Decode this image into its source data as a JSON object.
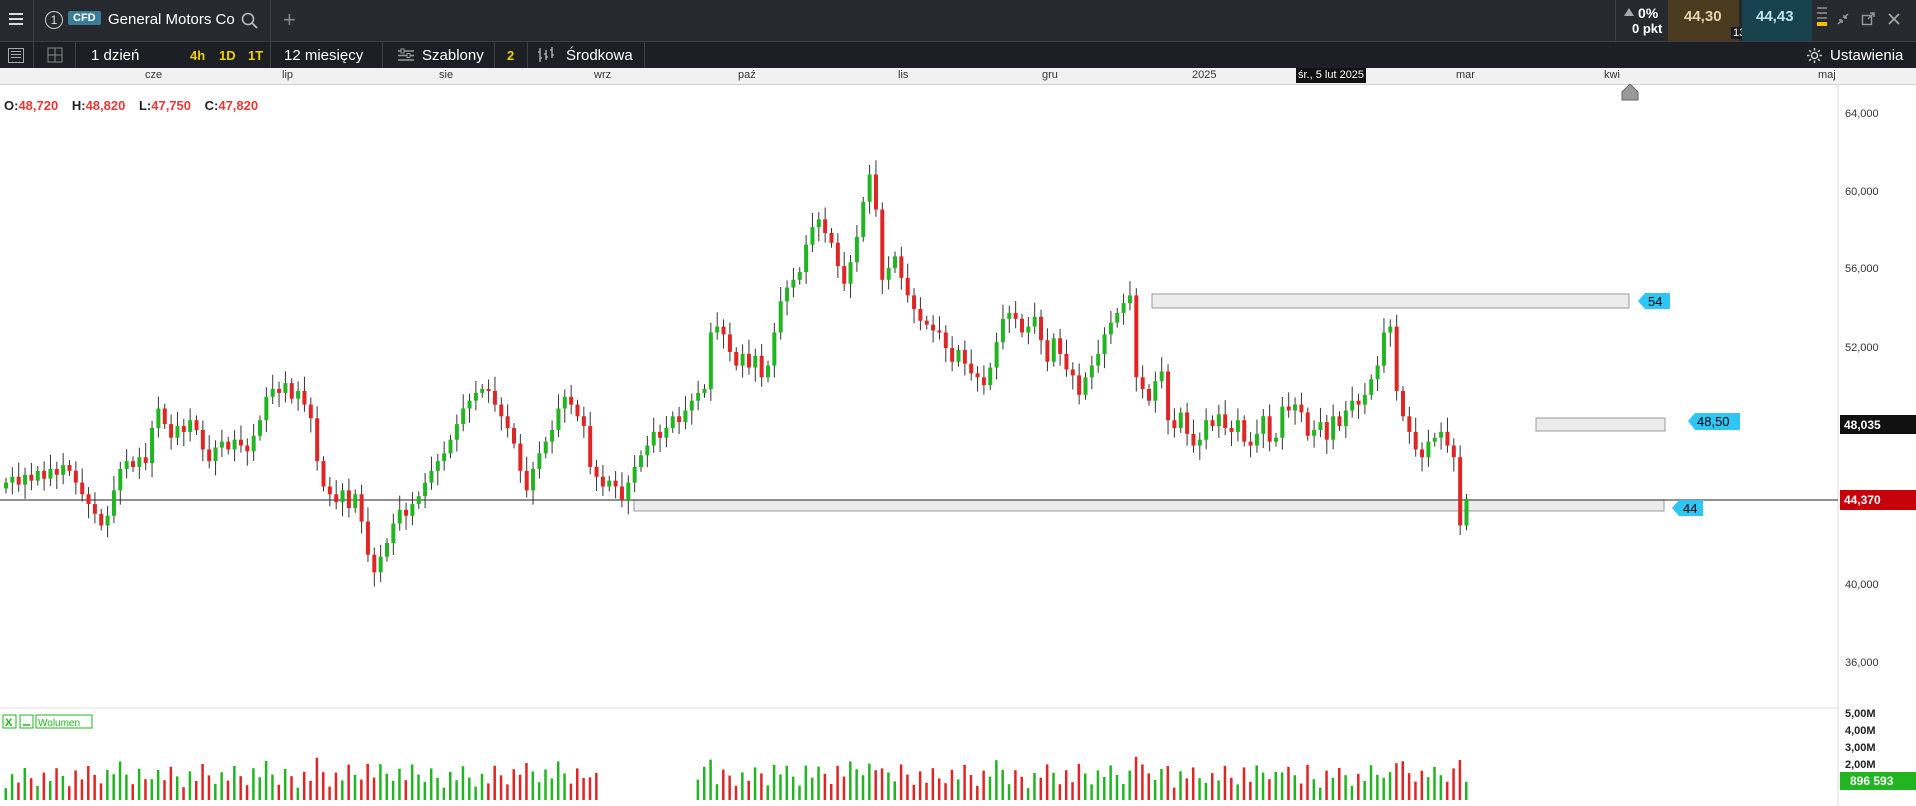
{
  "header": {
    "instrument_number": "1",
    "badge": "CFD",
    "instrument": "General Motors Co",
    "change_pct": "0%",
    "change_pts": "0 pkt",
    "sell_price": "44,30",
    "buy_price": "44,43",
    "spread": "13"
  },
  "toolbar": {
    "interval": "1 dzień",
    "quick_intervals": [
      "4h",
      "1D",
      "1T"
    ],
    "range": "12 miesięcy",
    "templates": "Szablony",
    "indicator_count": "2",
    "chart_style": "Środkowa",
    "settings": "Ustawienia"
  },
  "timeline": {
    "months": [
      "cze",
      "lip",
      "sie",
      "wrz",
      "paź",
      "lis",
      "gru",
      "2025",
      "mar",
      "kwi",
      "maj"
    ],
    "highlight": "śr., 5 lut 2025"
  },
  "ohlc": {
    "o_label": "O:",
    "o": "48,720",
    "h_label": "H:",
    "h": "48,820",
    "l_label": "L:",
    "l": "47,750",
    "c_label": "C:",
    "c": "47,820"
  },
  "y_axis": [
    "64,000",
    "60,000",
    "56,000",
    "52,000",
    "48,035",
    "44,370",
    "40,000",
    "36,000"
  ],
  "price_tags": {
    "current": "44,370",
    "cursor": "48,035"
  },
  "levels": [
    "54",
    "48,50",
    "44"
  ],
  "volume": {
    "label": "Wolumen",
    "axis": [
      "5,00M",
      "4,00M",
      "3,00M",
      "2,00M"
    ],
    "last": "896 593"
  },
  "colors": {
    "up": "#22b522",
    "down": "#e02525",
    "level_tag": "#2fc6f5",
    "current_tag": "#c8000a"
  },
  "chart_data": {
    "type": "candlestick",
    "y_range": [
      36,
      66
    ],
    "closes": [
      45.2,
      45.5,
      45.1,
      45.6,
      45.3,
      45.8,
      45.4,
      45.9,
      45.6,
      46.1,
      45.8,
      45.2,
      44.6,
      44.1,
      43.6,
      43.0,
      43.5,
      44.8,
      45.9,
      46.3,
      46.0,
      46.5,
      46.2,
      48.0,
      49.0,
      48.2,
      47.5,
      48.1,
      47.8,
      48.4,
      47.9,
      46.9,
      46.3,
      47.0,
      47.3,
      46.9,
      47.4,
      47.1,
      46.8,
      47.6,
      48.4,
      49.6,
      50.0,
      49.8,
      50.3,
      49.5,
      49.9,
      49.2,
      48.5,
      46.3,
      45.0,
      44.6,
      44.2,
      44.8,
      43.9,
      44.6,
      43.2,
      41.5,
      40.6,
      41.4,
      42.1,
      43.1,
      43.8,
      43.5,
      44.1,
      44.5,
      45.2,
      45.8,
      46.3,
      46.7,
      47.4,
      48.2,
      49.0,
      49.4,
      49.8,
      50.0,
      49.9,
      49.2,
      48.6,
      48.0,
      47.2,
      45.8,
      44.8,
      45.9,
      46.7,
      47.3,
      47.9,
      49.0,
      49.6,
      49.2,
      48.6,
      48.1,
      46.0,
      45.5,
      45.0,
      45.3,
      45.0,
      44.3,
      45.2,
      46.0,
      46.6,
      47.1,
      47.8,
      47.5,
      48.0,
      48.6,
      48.3,
      48.9,
      49.4,
      49.8,
      50.0,
      52.9,
      53.2,
      52.8,
      51.9,
      51.2,
      51.8,
      51.1,
      51.7,
      50.6,
      51.2,
      52.9,
      54.5,
      55.2,
      55.6,
      56.0,
      57.4,
      58.3,
      58.7,
      58.0,
      57.5,
      56.3,
      55.4,
      56.5,
      57.8,
      59.6,
      61.0,
      59.2,
      55.6,
      56.2,
      56.8,
      55.7,
      54.8,
      54.1,
      53.5,
      53.3,
      53.0,
      52.9,
      52.1,
      51.4,
      52.0,
      51.3,
      50.8,
      50.6,
      50.2,
      51.1,
      52.4,
      53.6,
      53.9,
      53.6,
      52.9,
      53.2,
      53.7,
      52.5,
      51.4,
      52.6,
      51.8,
      51.0,
      50.7,
      49.7,
      50.6,
      51.2,
      51.8,
      52.8,
      53.4,
      53.9,
      54.4,
      54.8,
      50.6,
      50.0,
      49.4,
      50.4,
      50.9,
      48.4,
      48.0,
      48.8,
      47.7,
      47.1,
      47.4,
      48.4,
      48.1,
      48.7,
      48.0,
      47.8,
      48.4,
      47.3,
      47.1,
      47.7,
      48.6,
      47.3,
      47.5,
      49.1,
      48.9,
      49.2,
      48.8,
      47.6,
      47.9,
      48.3,
      47.4,
      48.6,
      48.1,
      48.9,
      49.4,
      49.2,
      49.7,
      50.5,
      51.2,
      52.9,
      53.2,
      49.9,
      48.6,
      47.8,
      46.9,
      46.5,
      47.3,
      47.5,
      47.8,
      47.1,
      46.5,
      43.0,
      44.37
    ]
  }
}
